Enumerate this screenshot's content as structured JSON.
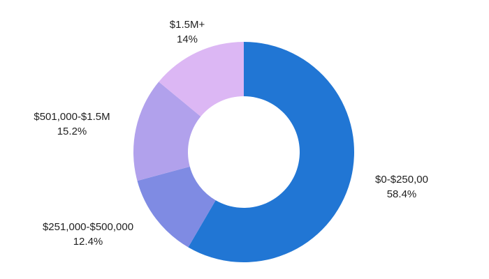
{
  "chart_data": {
    "type": "pie",
    "donut": true,
    "categories": [
      "$0-$250,00",
      "$251,000-$500,000",
      "$501,000-$1.5M",
      "$1.5M+"
    ],
    "values": [
      58.4,
      12.4,
      15.2,
      14
    ],
    "value_labels": [
      "58.4%",
      "12.4%",
      "15.2%",
      "14%"
    ],
    "colors": [
      "#2176D4",
      "#7F8BE3",
      "#B1A1EC",
      "#DCB7F4"
    ],
    "title": "",
    "legend": "none"
  }
}
